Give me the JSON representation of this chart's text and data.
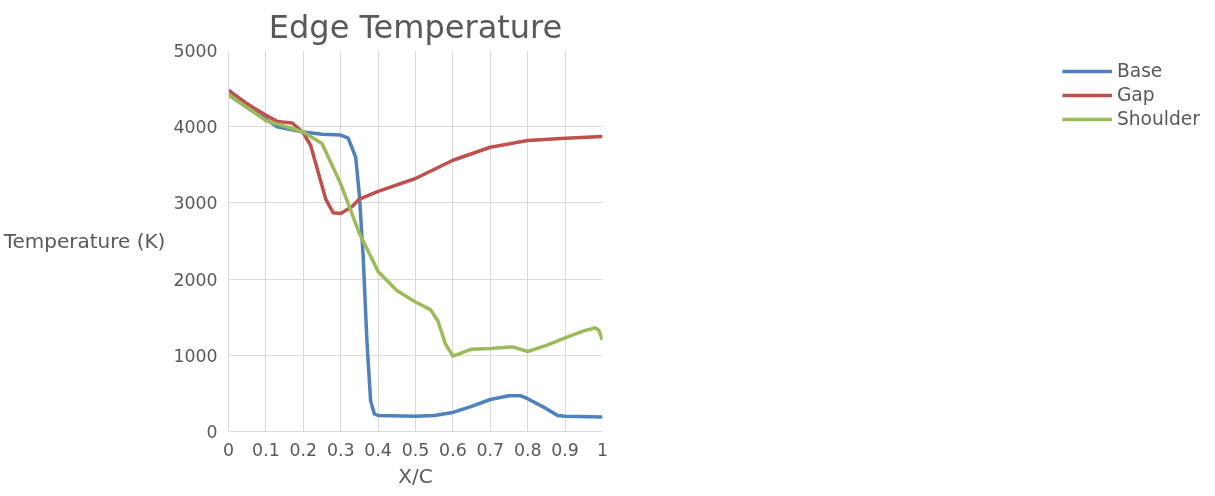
{
  "chart_data": {
    "type": "line",
    "title": "Edge Temperature",
    "xlabel": "X/C",
    "ylabel": "Temperature (K)",
    "xlim": [
      0,
      1
    ],
    "xticks": [
      0,
      0.1,
      0.2,
      0.3,
      0.4,
      0.5,
      0.6,
      0.7,
      0.8,
      0.9,
      1
    ],
    "ylim": [
      0,
      5000
    ],
    "yticks": [
      0,
      1000,
      2000,
      3000,
      4000,
      5000
    ],
    "grid": true,
    "legend": "right",
    "marker": "none",
    "line_style": "solid",
    "series": [
      {
        "name": "Base",
        "color": "#4f81bd",
        "x": [
          0,
          0.05,
          0.1,
          0.13,
          0.2,
          0.25,
          0.3,
          0.32,
          0.34,
          0.35,
          0.36,
          0.37,
          0.38,
          0.39,
          0.4,
          0.5,
          0.55,
          0.6,
          0.65,
          0.7,
          0.75,
          0.78,
          0.8,
          0.85,
          0.88,
          0.9,
          1
        ],
        "values": [
          4420,
          4250,
          4100,
          4000,
          3930,
          3900,
          3890,
          3850,
          3600,
          3100,
          2300,
          1200,
          400,
          230,
          210,
          200,
          210,
          250,
          330,
          420,
          470,
          470,
          430,
          300,
          210,
          200,
          190
        ]
      },
      {
        "name": "Gap",
        "color": "#c0504d",
        "x": [
          0,
          0.05,
          0.1,
          0.13,
          0.17,
          0.2,
          0.22,
          0.24,
          0.26,
          0.28,
          0.3,
          0.33,
          0.35,
          0.4,
          0.5,
          0.6,
          0.7,
          0.8,
          0.9,
          1
        ],
        "values": [
          4480,
          4300,
          4150,
          4070,
          4050,
          3920,
          3750,
          3400,
          3050,
          2870,
          2860,
          2950,
          3050,
          3150,
          3320,
          3560,
          3730,
          3820,
          3850,
          3870
        ]
      },
      {
        "name": "Shoulder",
        "color": "#9bbb59",
        "x": [
          0,
          0.1,
          0.2,
          0.25,
          0.3,
          0.35,
          0.4,
          0.45,
          0.5,
          0.54,
          0.56,
          0.58,
          0.6,
          0.65,
          0.7,
          0.76,
          0.8,
          0.85,
          0.9,
          0.95,
          0.98,
          0.99,
          1
        ],
        "values": [
          4420,
          4080,
          3930,
          3780,
          3250,
          2600,
          2100,
          1850,
          1700,
          1600,
          1450,
          1150,
          990,
          1080,
          1090,
          1110,
          1050,
          1130,
          1230,
          1320,
          1360,
          1330,
          1200
        ]
      }
    ]
  }
}
